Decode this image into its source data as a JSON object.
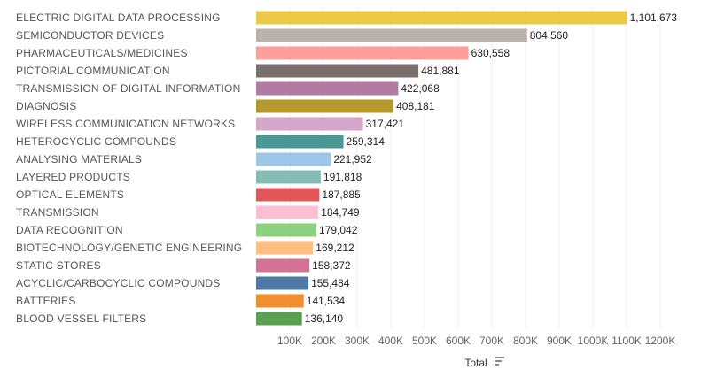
{
  "chart_data": {
    "type": "bar",
    "orientation": "horizontal",
    "xlabel": "Total",
    "xlim": [
      0,
      1200000
    ],
    "grid": true,
    "categories": [
      "ELECTRIC DIGITAL DATA PROCESSING",
      "SEMICONDUCTOR DEVICES",
      "PHARMACEUTICALS/MEDICINES",
      "PICTORIAL COMMUNICATION",
      "TRANSMISSION OF DIGITAL INFORMATION",
      "DIAGNOSIS",
      "WIRELESS COMMUNICATION NETWORKS",
      "HETEROCYCLIC COMPOUNDS",
      "ANALYSING MATERIALS",
      "LAYERED PRODUCTS",
      "OPTICAL ELEMENTS",
      "TRANSMISSION",
      "DATA RECOGNITION",
      "BIOTECHNOLOGY/GENETIC ENGINEERING",
      "STATIC STORES",
      "ACYCLIC/CARBOCYCLIC COMPOUNDS",
      "BATTERIES",
      "BLOOD VESSEL FILTERS"
    ],
    "values": [
      1101673,
      804560,
      630558,
      481881,
      422068,
      408181,
      317421,
      259314,
      221952,
      191818,
      187885,
      184749,
      179042,
      169212,
      158372,
      155484,
      141534,
      136140
    ],
    "value_labels": [
      "1,101,673",
      "804,560",
      "630,558",
      "481,881",
      "422,068",
      "408,181",
      "317,421",
      "259,314",
      "221,952",
      "191,818",
      "187,885",
      "184,749",
      "179,042",
      "169,212",
      "158,372",
      "155,484",
      "141,534",
      "136,140"
    ],
    "colors": [
      "#edc948",
      "#bab0ac",
      "#ff9d9a",
      "#79706e",
      "#b07aa1",
      "#b6992d",
      "#d4a6c8",
      "#499894",
      "#9dc7e6",
      "#86bcb6",
      "#e15759",
      "#fabfd2",
      "#8cd17d",
      "#ffbe7d",
      "#d37295",
      "#4e79a7",
      "#f28e2b",
      "#59a14f"
    ],
    "x_ticks": [
      100000,
      200000,
      300000,
      400000,
      500000,
      600000,
      700000,
      800000,
      900000,
      1000000,
      1100000,
      1200000
    ],
    "x_tick_labels": [
      "100K",
      "200K",
      "300K",
      "400K",
      "500K",
      "600K",
      "700K",
      "800K",
      "900K",
      "1000K",
      "1100K",
      "1200K"
    ],
    "sort_icon": "sort-descending-icon"
  }
}
